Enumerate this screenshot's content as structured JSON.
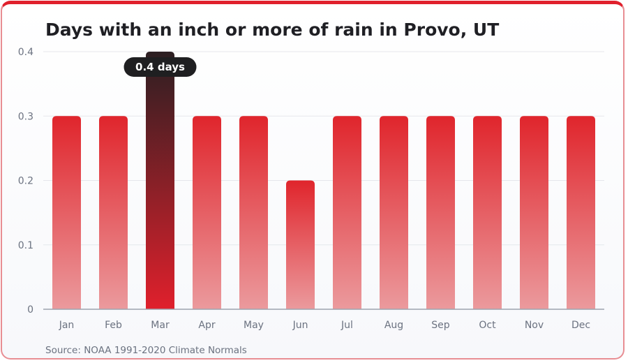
{
  "title": "Days with an inch or more of rain in Provo, UT",
  "source": "Source: NOAA 1991-2020 Climate Normals",
  "colors": {
    "bar_top": "#e0252c",
    "bar_bottom": "#eb9a9d",
    "highlight_top": "#2b1f22",
    "highlight_bottom": "#e0202c",
    "grid": "#e5e7eb",
    "axis": "#9ca3af",
    "tooltip_bg": "#1f1f21"
  },
  "tooltip": {
    "label": "0.4 days",
    "category": "Mar"
  },
  "chart_data": {
    "type": "bar",
    "title": "Days with an inch or more of rain in Provo, UT",
    "categories": [
      "Jan",
      "Feb",
      "Mar",
      "Apr",
      "May",
      "Jun",
      "Jul",
      "Aug",
      "Sep",
      "Oct",
      "Nov",
      "Dec"
    ],
    "values": [
      0.3,
      0.3,
      0.4,
      0.3,
      0.3,
      0.2,
      0.3,
      0.3,
      0.3,
      0.3,
      0.3,
      0.3
    ],
    "highlighted": "Mar",
    "xlabel": "",
    "ylabel": "",
    "ylim": [
      0,
      0.4
    ],
    "yticks": [
      "0",
      "0.1",
      "0.2",
      "0.3",
      "0.4"
    ],
    "grid": true
  }
}
